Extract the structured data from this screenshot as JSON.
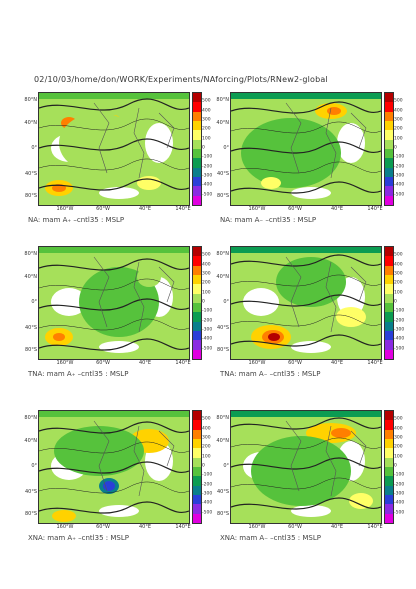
{
  "header": "02/10/03/home/don/WORK/Experiments/NAforcing/Plots/RNew2-global",
  "colorbar": {
    "labels": [
      "500",
      "400",
      "300",
      "200",
      "100",
      "0",
      "-100",
      "-200",
      "-300",
      "-400",
      "-500"
    ],
    "colors": [
      "#b40000",
      "#ff0000",
      "#ff7f00",
      "#ffd200",
      "#ffff66",
      "#a6e05a",
      "#56c23c",
      "#0c9c52",
      "#0a7f8c",
      "#2a3fd8",
      "#8a2be2",
      "#e000e0"
    ]
  },
  "axes": {
    "lat_labels": [
      "80°N",
      "40°N",
      "0°",
      "40°S",
      "80°S"
    ],
    "lon_labels": [
      "160°W",
      "60°W",
      "40°E",
      "140°E"
    ]
  },
  "panels": [
    {
      "caption": "NA: mam A₊ –cntl35 : MSLP"
    },
    {
      "caption": "NA: mam A₋ –cntl35 : MSLP"
    },
    {
      "caption": "TNA: mam A₊ –cntl35 : MSLP"
    },
    {
      "caption": "TNA: mam A₋ –cntl35 : MSLP"
    },
    {
      "caption": "XNA: mam A₊ –cntl35 : MSLP"
    },
    {
      "caption": "XNA: mam A₋ –cntl35 : MSLP"
    }
  ]
}
